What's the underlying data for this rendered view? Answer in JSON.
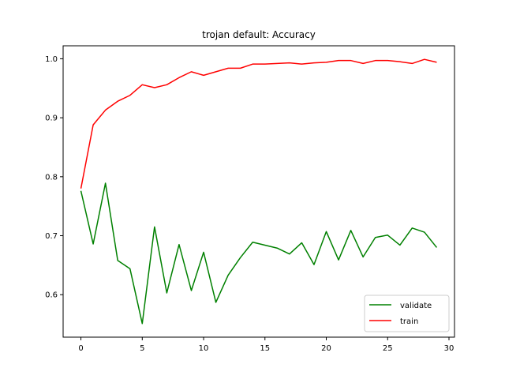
{
  "chart_data": {
    "type": "line",
    "title": "trojan default: Accuracy",
    "xlabel": "",
    "ylabel": "",
    "xlim": [
      -1.45,
      30.45
    ],
    "ylim": [
      0.528,
      1.022
    ],
    "xticks": [
      0,
      5,
      10,
      15,
      20,
      25,
      30
    ],
    "yticks": [
      0.6,
      0.7,
      0.8,
      0.9,
      1.0
    ],
    "ytick_labels": [
      "0.6",
      "0.7",
      "0.8",
      "0.9",
      "1.0"
    ],
    "grid": false,
    "legend_position": "lower-right",
    "x": [
      0,
      1,
      2,
      3,
      4,
      5,
      6,
      7,
      8,
      9,
      10,
      11,
      12,
      13,
      14,
      15,
      16,
      17,
      18,
      19,
      20,
      21,
      22,
      23,
      24,
      25,
      26,
      27,
      28,
      29
    ],
    "series": [
      {
        "name": "validate",
        "color": "#008000",
        "values": [
          0.776,
          0.686,
          0.789,
          0.658,
          0.644,
          0.551,
          0.715,
          0.603,
          0.685,
          0.607,
          0.672,
          0.587,
          0.633,
          0.663,
          0.689,
          0.684,
          0.679,
          0.669,
          0.688,
          0.651,
          0.707,
          0.659,
          0.709,
          0.664,
          0.697,
          0.701,
          0.684,
          0.713,
          0.706,
          0.68
        ]
      },
      {
        "name": "train",
        "color": "#ff0000",
        "values": [
          0.78,
          0.888,
          0.913,
          0.928,
          0.938,
          0.956,
          0.951,
          0.956,
          0.968,
          0.978,
          0.972,
          0.978,
          0.984,
          0.984,
          0.991,
          0.991,
          0.992,
          0.993,
          0.991,
          0.993,
          0.994,
          0.997,
          0.997,
          0.992,
          0.997,
          0.997,
          0.995,
          0.992,
          0.999,
          0.994
        ]
      }
    ]
  }
}
